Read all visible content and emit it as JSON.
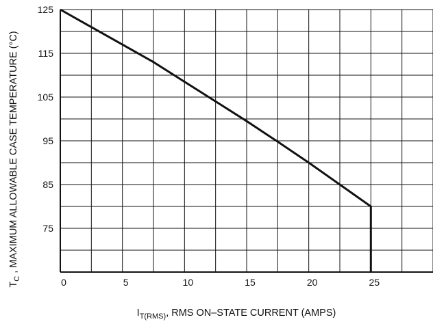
{
  "chart_data": {
    "type": "line",
    "title": "",
    "xlabel": {
      "symbol": "I",
      "subscript": "T(RMS)",
      "text": ", RMS ON–STATE CURRENT (AMPS)"
    },
    "ylabel": {
      "symbol": "T",
      "subscript": "C",
      "text": " , MAXIMUM ALLOWABLE CASE TEMPERATURE (°C)"
    },
    "xlim": [
      0,
      30
    ],
    "ylim": [
      65,
      125
    ],
    "x_ticks": [
      0,
      5,
      10,
      15,
      20,
      25
    ],
    "x_tick_labels": [
      "0",
      "5",
      "10",
      "15",
      "20",
      "25"
    ],
    "y_ticks": [
      125,
      115,
      105,
      95,
      85,
      75
    ],
    "y_tick_labels": [
      "125",
      "115",
      "105",
      "95",
      "85",
      "75"
    ],
    "x_gridlines": [
      0,
      2.5,
      5,
      7.5,
      10,
      12.5,
      15,
      17.5,
      20,
      22.5,
      25,
      27.5,
      30
    ],
    "y_gridlines": [
      65,
      70,
      75,
      80,
      85,
      90,
      95,
      100,
      105,
      110,
      115,
      120,
      125
    ],
    "grid": true,
    "series": [
      {
        "x": [
          0,
          2.5,
          5,
          7.5,
          10,
          12.5,
          15,
          17.5,
          20,
          22.5,
          25,
          25
        ],
        "y": [
          125,
          121,
          117,
          113,
          108.5,
          104,
          99.5,
          94.8,
          90,
          85,
          80,
          65
        ]
      }
    ],
    "colors": {
      "line": "#111111",
      "grid": "#111111"
    }
  }
}
